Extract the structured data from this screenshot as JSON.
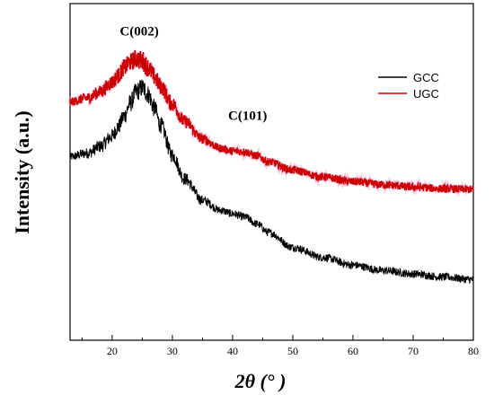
{
  "chart_data": {
    "type": "line",
    "title": "",
    "xlabel": "2θ (°  )",
    "ylabel": "Intensity (a.u.)",
    "xlim": [
      13,
      80
    ],
    "ylim": [
      0,
      1
    ],
    "x_ticks": [
      20,
      30,
      40,
      50,
      60,
      70,
      80
    ],
    "y_ticks_shown": false,
    "grid": false,
    "legend_position": "top-right",
    "annotations": [
      {
        "text": "C(002)",
        "x": 24.5,
        "y": 0.905
      },
      {
        "text": "C(101)",
        "x": 42.5,
        "y": 0.655
      }
    ],
    "series": [
      {
        "name": "GCC",
        "color": "#000000",
        "x": [
          13,
          16,
          18,
          20,
          21,
          22,
          23,
          24,
          25,
          26,
          27,
          28,
          30,
          32,
          35,
          38,
          40,
          42,
          44,
          46,
          50,
          55,
          60,
          65,
          70,
          75,
          80
        ],
        "y": [
          0.545,
          0.556,
          0.576,
          0.606,
          0.634,
          0.666,
          0.704,
          0.738,
          0.75,
          0.73,
          0.69,
          0.64,
          0.55,
          0.48,
          0.416,
          0.386,
          0.376,
          0.366,
          0.346,
          0.32,
          0.276,
          0.246,
          0.223,
          0.207,
          0.197,
          0.188,
          0.18
        ]
      },
      {
        "name": "UGC",
        "color": "#cc0000",
        "x": [
          13,
          16,
          18,
          20,
          21,
          22,
          23,
          24,
          25,
          26,
          27,
          28,
          30,
          32,
          35,
          38,
          40,
          42,
          44,
          46,
          50,
          55,
          60,
          65,
          70,
          75,
          80
        ],
        "y": [
          0.708,
          0.72,
          0.738,
          0.766,
          0.786,
          0.81,
          0.826,
          0.836,
          0.83,
          0.81,
          0.783,
          0.755,
          0.701,
          0.65,
          0.598,
          0.57,
          0.562,
          0.56,
          0.548,
          0.53,
          0.505,
          0.485,
          0.471,
          0.462,
          0.455,
          0.45,
          0.448
        ]
      }
    ]
  }
}
